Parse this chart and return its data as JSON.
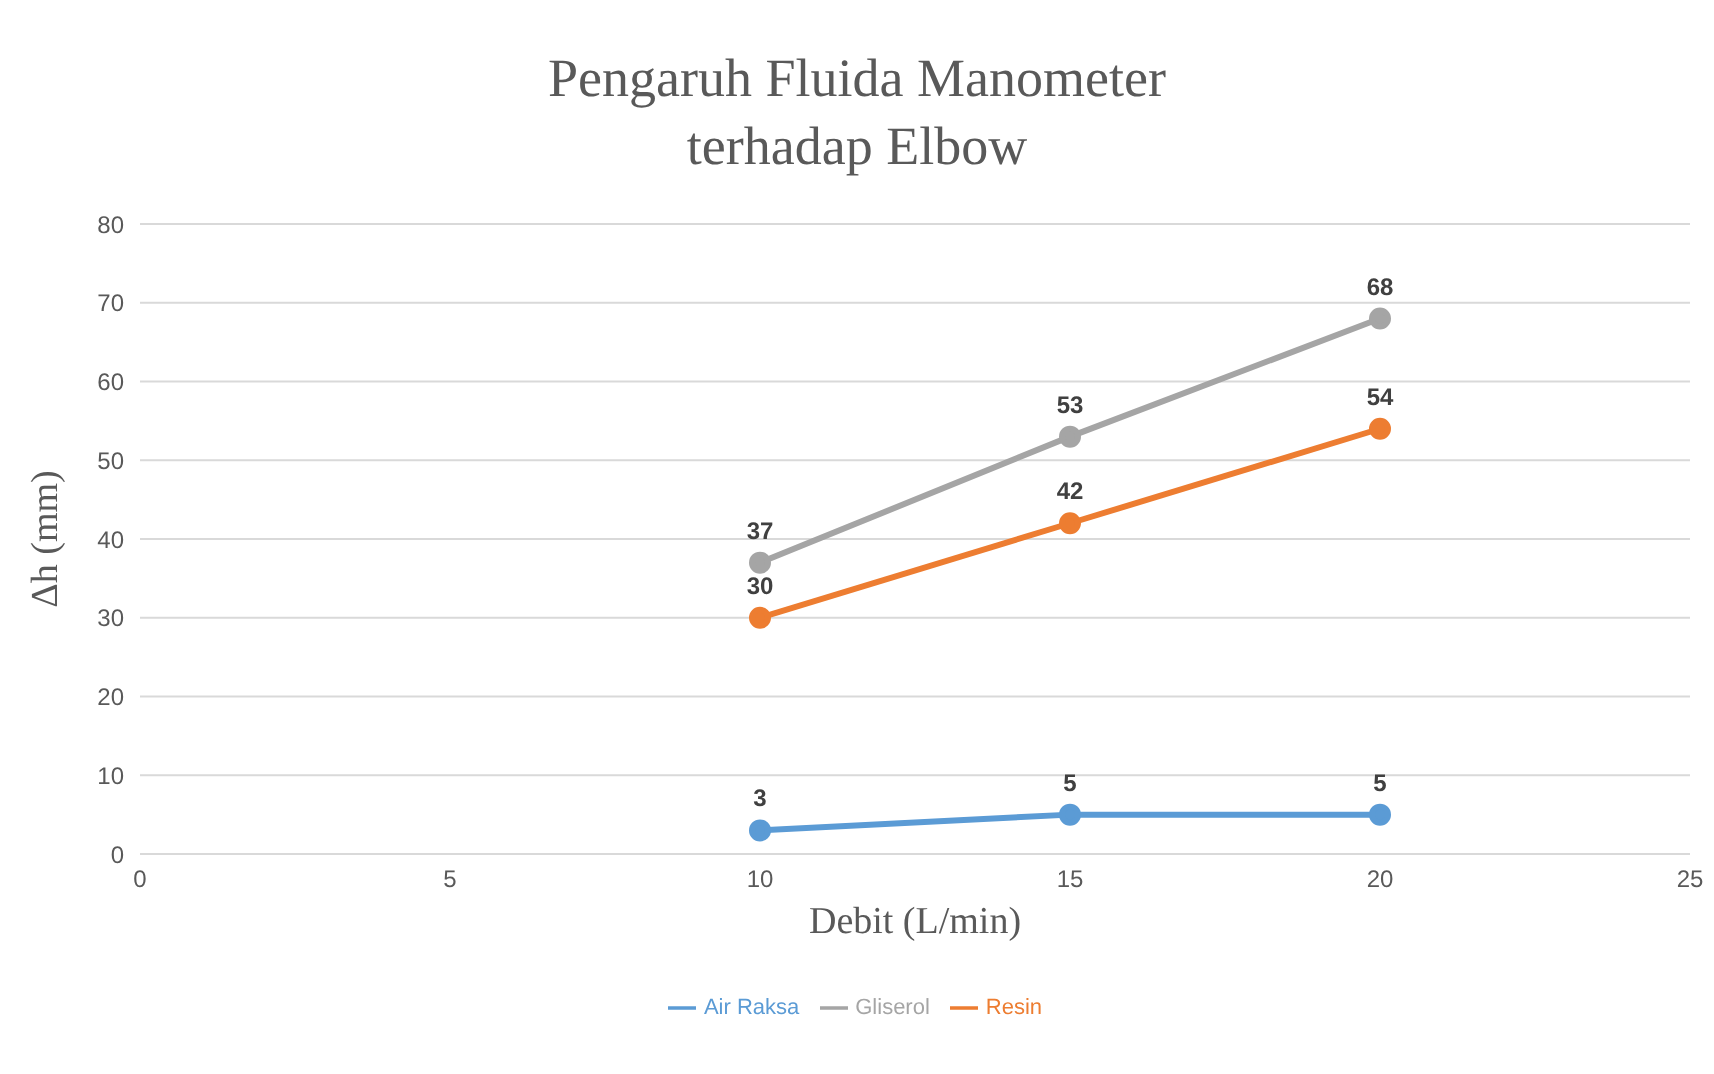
{
  "chart_data": {
    "type": "line",
    "title": "Pengaruh Fluida Manometer terhadap Elbow",
    "xlabel": "Debit (L/min)",
    "ylabel": "Δh (mm)",
    "x": [
      10,
      15,
      20
    ],
    "series": [
      {
        "name": "Air Raksa",
        "color": "#5b9bd5",
        "values": [
          3,
          5,
          5
        ]
      },
      {
        "name": "Resin",
        "color": "#ed7d31",
        "values": [
          30,
          42,
          54
        ]
      },
      {
        "name": "Gliserol",
        "color": "#a5a5a5",
        "values": [
          37,
          53,
          68
        ]
      }
    ],
    "xlim": [
      0,
      25
    ],
    "xticks": [
      0,
      5,
      10,
      15,
      20,
      25
    ],
    "ylim": [
      0,
      80
    ],
    "yticks": [
      0,
      10,
      20,
      30,
      40,
      50,
      60,
      70,
      80
    ],
    "grid": "y",
    "legend": "bottom",
    "marker": "circle",
    "line_style": "solid",
    "data_labels": true
  }
}
